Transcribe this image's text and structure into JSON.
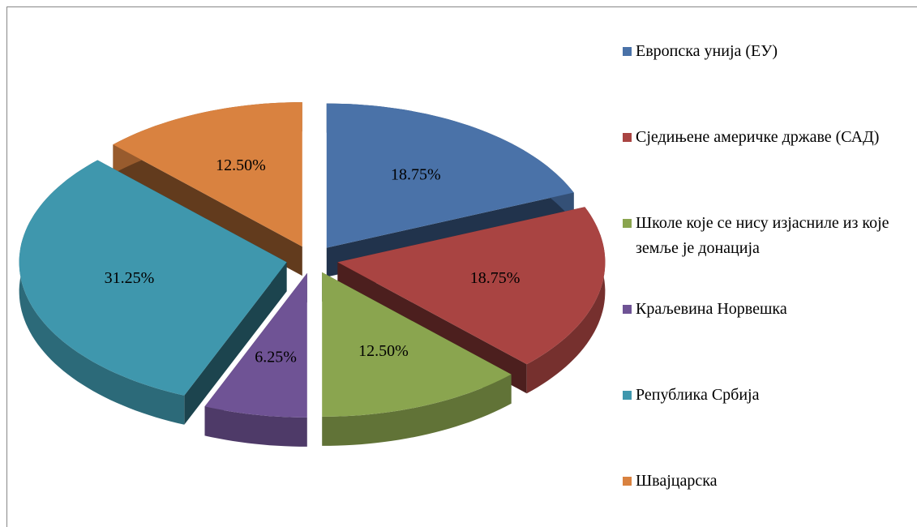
{
  "chart_data": {
    "type": "pie",
    "categories": [
      "Европска унија (ЕУ)",
      "Сједињене америчке државе (САД)",
      "Школе које се нису изјасниле из које земље је донација",
      "Краљевина Норвешка",
      "Република Србија",
      "Швајцарска"
    ],
    "values": [
      18.75,
      18.75,
      12.5,
      6.25,
      31.25,
      12.5
    ],
    "value_labels": [
      "18.75%",
      "18.75%",
      "12.50%",
      "6.25%",
      "31.25%",
      "12.50%"
    ],
    "colors": [
      "#4a72a8",
      "#a94442",
      "#8aa54f",
      "#6f5395",
      "#3f97ad",
      "#d98240"
    ],
    "legend": "right"
  }
}
